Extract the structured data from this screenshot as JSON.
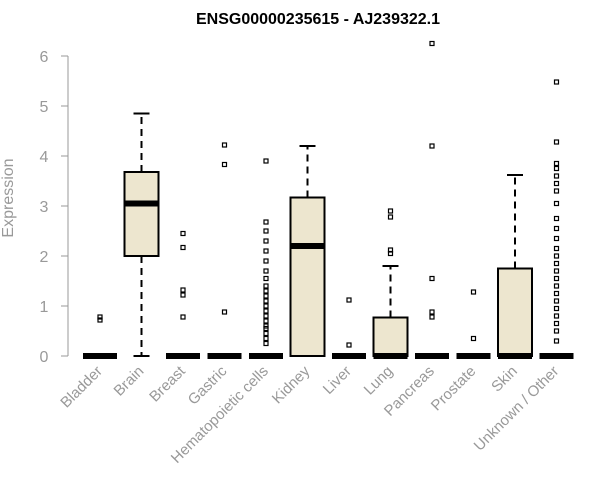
{
  "chart_data": {
    "type": "box",
    "title": "ENSG00000235615 - AJ239322.1",
    "xlabel": "",
    "ylabel": "Expression",
    "ylim": [
      0,
      6.2
    ],
    "yticks": [
      0,
      1,
      2,
      3,
      4,
      5,
      6
    ],
    "grid": false,
    "colors": {
      "box_fill": "#ede6cf",
      "box_stroke": "#000000",
      "axis": "#999999"
    },
    "categories": [
      "Bladder",
      "Brain",
      "Breast",
      "Gastric",
      "Hematopoietic cells",
      "Kidney",
      "Liver",
      "Lung",
      "Pancreas",
      "Prostate",
      "Skin",
      "Unknown / Other"
    ],
    "boxes": [
      {
        "category": "Bladder",
        "min": 0,
        "q1": 0,
        "median": 0,
        "q3": 0,
        "max": 0,
        "outliers": [
          0.72,
          0.78
        ]
      },
      {
        "category": "Brain",
        "min": 0,
        "q1": 2.0,
        "median": 3.05,
        "q3": 3.68,
        "max": 4.85,
        "outliers": []
      },
      {
        "category": "Breast",
        "min": 0,
        "q1": 0,
        "median": 0,
        "q3": 0,
        "max": 0,
        "outliers": [
          0.78,
          1.22,
          1.32,
          2.17,
          2.45
        ]
      },
      {
        "category": "Gastric",
        "min": 0,
        "q1": 0,
        "median": 0,
        "q3": 0,
        "max": 0,
        "outliers": [
          0.88,
          3.83,
          4.22
        ]
      },
      {
        "category": "Hematopoietic cells",
        "min": 0,
        "q1": 0,
        "median": 0,
        "q3": 0,
        "max": 0,
        "outliers": [
          0.25,
          0.35,
          0.45,
          0.55,
          0.6,
          0.7,
          0.8,
          0.9,
          1.0,
          1.1,
          1.2,
          1.3,
          1.4,
          1.55,
          1.7,
          1.9,
          2.1,
          2.3,
          2.5,
          2.68,
          3.9
        ]
      },
      {
        "category": "Kidney",
        "min": 0,
        "q1": 0,
        "median": 2.2,
        "q3": 3.17,
        "max": 4.2,
        "outliers": []
      },
      {
        "category": "Liver",
        "min": 0,
        "q1": 0,
        "median": 0,
        "q3": 0,
        "max": 0,
        "outliers": [
          0.22,
          1.12
        ]
      },
      {
        "category": "Lung",
        "min": 0,
        "q1": 0,
        "median": 0,
        "q3": 0.77,
        "max": 1.8,
        "outliers": [
          2.05,
          2.12,
          2.78,
          2.9
        ]
      },
      {
        "category": "Pancreas",
        "min": 0,
        "q1": 0,
        "median": 0,
        "q3": 0,
        "max": 0,
        "outliers": [
          0.78,
          0.88,
          1.55,
          4.2,
          6.25
        ]
      },
      {
        "category": "Prostate",
        "min": 0,
        "q1": 0,
        "median": 0,
        "q3": 0,
        "max": 0,
        "outliers": [
          0.35,
          1.28
        ]
      },
      {
        "category": "Skin",
        "min": 0,
        "q1": 0,
        "median": 0,
        "q3": 1.75,
        "max": 3.62,
        "outliers": []
      },
      {
        "category": "Unknown / Other",
        "min": 0,
        "q1": 0,
        "median": 0,
        "q3": 0,
        "max": 0,
        "outliers": [
          0.3,
          0.5,
          0.65,
          0.8,
          0.95,
          1.1,
          1.25,
          1.4,
          1.55,
          1.7,
          1.85,
          2.0,
          2.15,
          2.35,
          2.55,
          2.75,
          3.05,
          3.3,
          3.45,
          3.6,
          3.75,
          3.85,
          4.28,
          5.48
        ]
      }
    ]
  }
}
